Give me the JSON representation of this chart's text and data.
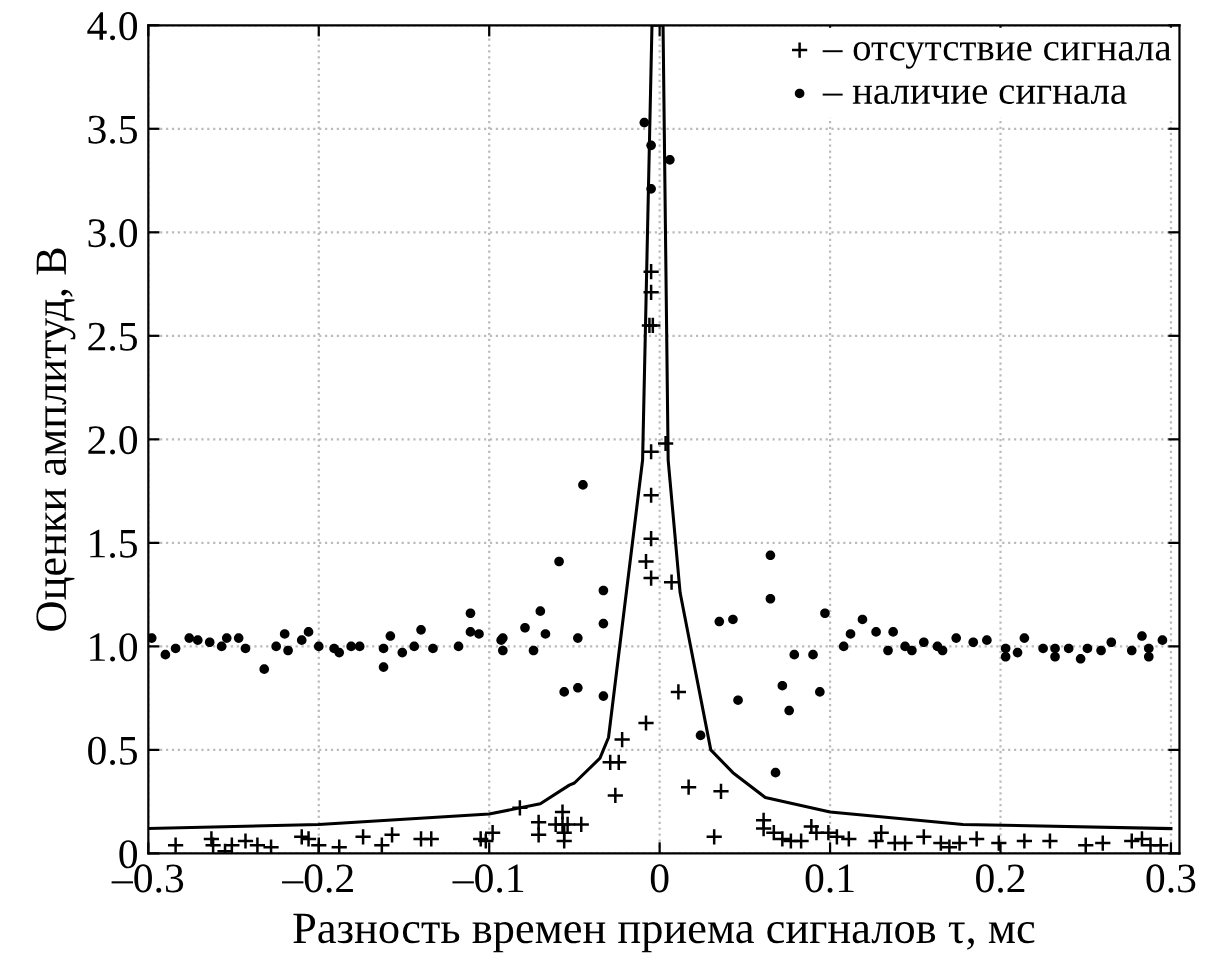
{
  "chart_data": {
    "type": "scatter",
    "xlabel": "Разность времен приема сигналов τ, мс",
    "ylabel": "Оценки амплитуд, В",
    "xlim": [
      -0.3,
      0.305
    ],
    "ylim": [
      0,
      4
    ],
    "xticks": [
      {
        "value": -0.3,
        "label": "–0.3"
      },
      {
        "value": -0.2,
        "label": "–0.2"
      },
      {
        "value": -0.1,
        "label": "–0.1"
      },
      0,
      0.1,
      0.2,
      0.3
    ],
    "yticks": [
      0,
      0.5,
      {
        "value": 1,
        "label": "1.0"
      },
      1.5,
      {
        "value": 2,
        "label": "2.0"
      },
      2.5,
      {
        "value": 3,
        "label": "3.0"
      },
      3.5,
      {
        "value": 4,
        "label": "4.0"
      }
    ],
    "grid": true,
    "legend": "top right",
    "series": [
      {
        "name": "– отсутствие сигнала",
        "color": "#000000",
        "marker": "cross",
        "x": [
          -0.005,
          -0.005,
          -0.006,
          -0.004,
          -0.005,
          0.0035,
          -0.005,
          -0.005,
          -0.008,
          -0.005,
          0.007,
          0.011,
          -0.008,
          -0.022,
          -0.024,
          -0.026,
          -0.029,
          0.017,
          0.036,
          0.032,
          -0.046,
          -0.057,
          -0.057,
          -0.056,
          -0.056,
          -0.071,
          -0.071,
          -0.061,
          -0.054,
          -0.082,
          -0.098,
          -0.105,
          -0.102,
          -0.284,
          -0.263,
          -0.262,
          -0.255,
          -0.251,
          -0.243,
          -0.236,
          -0.228,
          -0.21,
          -0.206,
          -0.2,
          -0.188,
          -0.174,
          -0.163,
          -0.157,
          -0.14,
          -0.134,
          0.061,
          0.061,
          0.067,
          0.072,
          0.077,
          0.083,
          0.089,
          0.092,
          0.099,
          0.104,
          0.111,
          0.127,
          0.13,
          0.138,
          0.144,
          0.155,
          0.165,
          0.17,
          0.176,
          0.186,
          0.199,
          0.214,
          0.229,
          0.25,
          0.26,
          0.277,
          0.283,
          0.288,
          0.294
        ],
        "values": [
          2.81,
          2.71,
          2.55,
          2.55,
          1.94,
          1.98,
          1.73,
          1.52,
          1.41,
          1.33,
          1.31,
          0.78,
          0.63,
          0.55,
          0.44,
          0.28,
          0.44,
          0.32,
          0.3,
          0.08,
          0.14,
          0.2,
          0.14,
          0.1,
          0.06,
          0.15,
          0.09,
          0.14,
          0.14,
          0.22,
          0.1,
          0.07,
          0.06,
          0.04,
          0.07,
          0.04,
          0.01,
          0.04,
          0.06,
          0.04,
          0.03,
          0.08,
          0.07,
          0.04,
          0.03,
          0.08,
          0.04,
          0.09,
          0.07,
          0.07,
          0.12,
          0.16,
          0.1,
          0.07,
          0.06,
          0.06,
          0.13,
          0.1,
          0.1,
          0.08,
          0.07,
          0.06,
          0.1,
          0.05,
          0.05,
          0.08,
          0.05,
          0.03,
          0.05,
          0.07,
          0.05,
          0.06,
          0.06,
          0.04,
          0.05,
          0.06,
          0.07,
          0.04,
          0.04
        ]
      },
      {
        "name": "– наличие сигнала",
        "color": "#000000",
        "marker": "circle",
        "x": [
          -0.298,
          -0.29,
          -0.284,
          -0.276,
          -0.271,
          -0.264,
          -0.257,
          -0.254,
          -0.247,
          -0.243,
          -0.232,
          -0.225,
          -0.22,
          -0.218,
          -0.21,
          -0.206,
          -0.2,
          -0.191,
          -0.188,
          -0.181,
          -0.176,
          -0.162,
          -0.162,
          -0.158,
          -0.151,
          -0.144,
          -0.14,
          -0.133,
          -0.118,
          -0.111,
          -0.111,
          -0.106,
          -0.093,
          -0.092,
          -0.092,
          -0.079,
          -0.074,
          -0.07,
          -0.067,
          -0.059,
          -0.056,
          -0.048,
          -0.048,
          -0.045,
          -0.033,
          -0.033,
          -0.033,
          -0.009,
          -0.005,
          0.006,
          -0.005,
          0.024,
          0.035,
          0.043,
          0.046,
          0.065,
          0.065,
          0.068,
          0.072,
          0.076,
          0.079,
          0.09,
          0.094,
          0.097,
          0.108,
          0.112,
          0.119,
          0.127,
          0.134,
          0.137,
          0.144,
          0.148,
          0.155,
          0.163,
          0.166,
          0.174,
          0.184,
          0.192,
          0.203,
          0.203,
          0.21,
          0.214,
          0.225,
          0.232,
          0.232,
          0.24,
          0.247,
          0.251,
          0.259,
          0.265,
          0.277,
          0.283,
          0.287,
          0.287,
          0.295
        ],
        "values": [
          1.04,
          0.96,
          0.99,
          1.04,
          1.03,
          1.02,
          1.0,
          1.04,
          1.04,
          0.99,
          0.89,
          1.0,
          1.06,
          0.98,
          1.03,
          1.07,
          1.0,
          0.99,
          0.97,
          1.0,
          1.0,
          0.99,
          0.9,
          1.05,
          0.97,
          1.0,
          1.08,
          0.99,
          1.0,
          1.16,
          1.07,
          1.06,
          1.03,
          1.04,
          0.98,
          1.09,
          0.98,
          1.17,
          1.06,
          1.41,
          0.78,
          0.8,
          1.04,
          1.78,
          1.27,
          1.11,
          0.76,
          3.53,
          3.42,
          3.35,
          3.21,
          0.57,
          1.12,
          1.13,
          0.74,
          1.44,
          1.23,
          0.39,
          0.81,
          0.69,
          0.96,
          0.96,
          0.78,
          1.16,
          1.0,
          1.06,
          1.13,
          1.07,
          0.98,
          1.07,
          1.0,
          0.98,
          1.02,
          1.0,
          0.98,
          1.04,
          1.02,
          1.03,
          0.99,
          0.95,
          0.97,
          1.04,
          0.99,
          0.99,
          0.95,
          0.99,
          0.94,
          0.99,
          0.98,
          1.02,
          0.98,
          1.05,
          0.99,
          0.95,
          1.03
        ]
      },
      {
        "type": "line",
        "color": "#000000",
        "marker": "none",
        "line_style": "solid",
        "x": [
          -0.3,
          -0.2,
          -0.1,
          -0.07,
          -0.053,
          -0.05,
          -0.035,
          -0.03,
          -0.01,
          -0.0045,
          0.002,
          0.005,
          0.012,
          0.03,
          0.043,
          0.062,
          0.1,
          0.178,
          0.3
        ],
        "values": [
          0.12,
          0.14,
          0.19,
          0.24,
          0.33,
          0.34,
          0.46,
          0.56,
          1.9,
          4.0,
          4.0,
          1.9,
          1.26,
          0.5,
          0.39,
          0.27,
          0.2,
          0.14,
          0.12
        ]
      }
    ]
  }
}
